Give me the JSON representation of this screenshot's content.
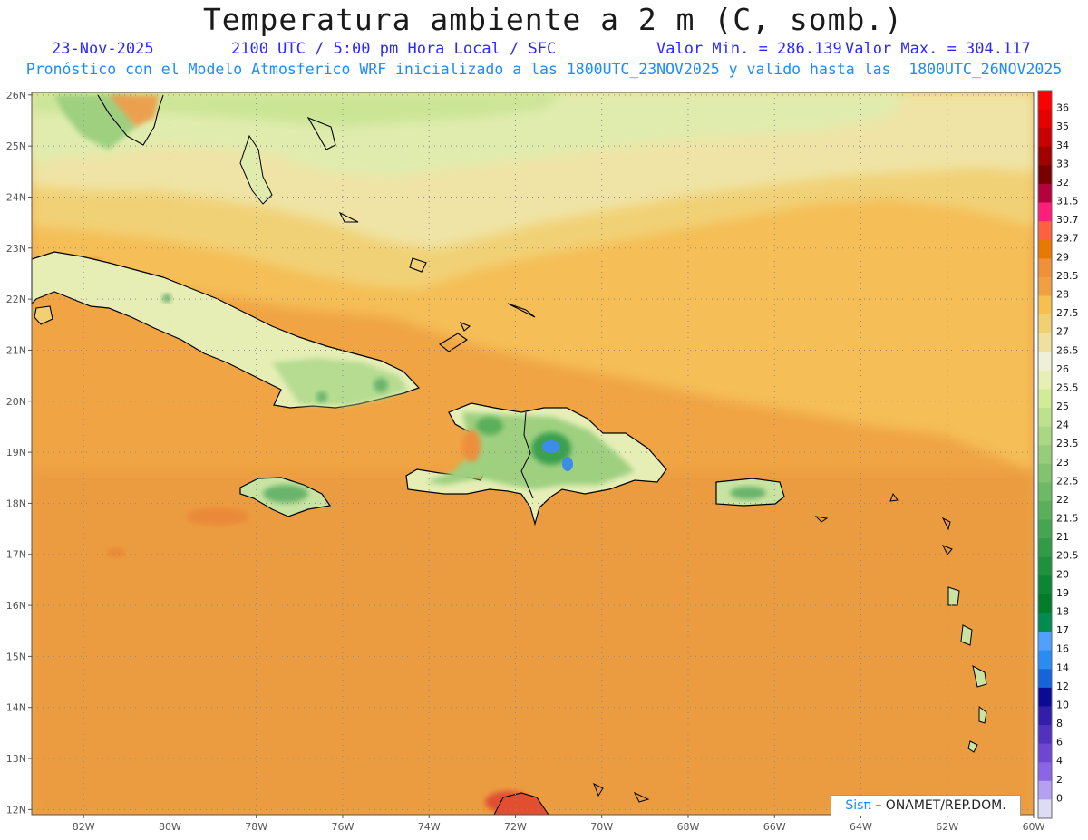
{
  "header": {
    "title": "Temperatura ambiente a 2 m (C, somb.)",
    "date": "23-Nov-2025",
    "time": "2100 UTC / 5:00 pm Hora Local / SFC",
    "min_label": "Valor Min. = 286.139",
    "max_label": "Valor Max. = 304.117",
    "forecast": "Pronóstico con el Modelo Atmosferico WRF inicializado a las 1800UTC_23NOV2025 y valido hasta las  1800UTC_26NOV2025"
  },
  "map": {
    "lat_ticks": [
      "26N",
      "25N",
      "24N",
      "23N",
      "22N",
      "21N",
      "20N",
      "19N",
      "18N",
      "17N",
      "16N",
      "15N",
      "14N",
      "13N",
      "12N"
    ],
    "lon_ticks": [
      "82W",
      "80W",
      "78W",
      "76W",
      "74W",
      "72W",
      "70W",
      "68W",
      "66W",
      "64W",
      "62W",
      "60W"
    ],
    "extent": {
      "lon_min": -83.2,
      "lon_max": -60.0,
      "lat_min": 11.9,
      "lat_max": 26.05
    }
  },
  "legend": {
    "labels": [
      "36",
      "35",
      "34",
      "33",
      "32",
      "31.5",
      "30.7",
      "29.7",
      "29",
      "28.5",
      "28",
      "27.5",
      "27",
      "26.5",
      "26",
      "25.5",
      "25",
      "24",
      "23.5",
      "23",
      "22.5",
      "22",
      "21.5",
      "21",
      "20.5",
      "20",
      "19",
      "18",
      "17",
      "16",
      "14",
      "12",
      "10",
      "8",
      "6",
      "4",
      "2",
      "0"
    ],
    "colors": [
      "#ff0000",
      "#e60000",
      "#c80000",
      "#a00000",
      "#780000",
      "#b4003c",
      "#ff1e78",
      "#ff6040",
      "#e87800",
      "#f09038",
      "#f0a040",
      "#f5c050",
      "#f0d070",
      "#f0e0a0",
      "#f0f0d8",
      "#e6f0b4",
      "#d2eb96",
      "#bee18c",
      "#aad782",
      "#96cd78",
      "#82c36e",
      "#6eb964",
      "#5aaf5a",
      "#46a550",
      "#329b46",
      "#1e913c",
      "#0a8732",
      "#007d28",
      "#008c50",
      "#50a0ff",
      "#288cf0",
      "#1464dc",
      "#0a0a96",
      "#321eaa",
      "#5032be",
      "#6e46d2",
      "#8c64e6",
      "#b4a0f0",
      "#dcdcf5"
    ]
  },
  "credit": {
    "sis": "Sisπ",
    "text": "– ONAMET/REP.DOM."
  }
}
